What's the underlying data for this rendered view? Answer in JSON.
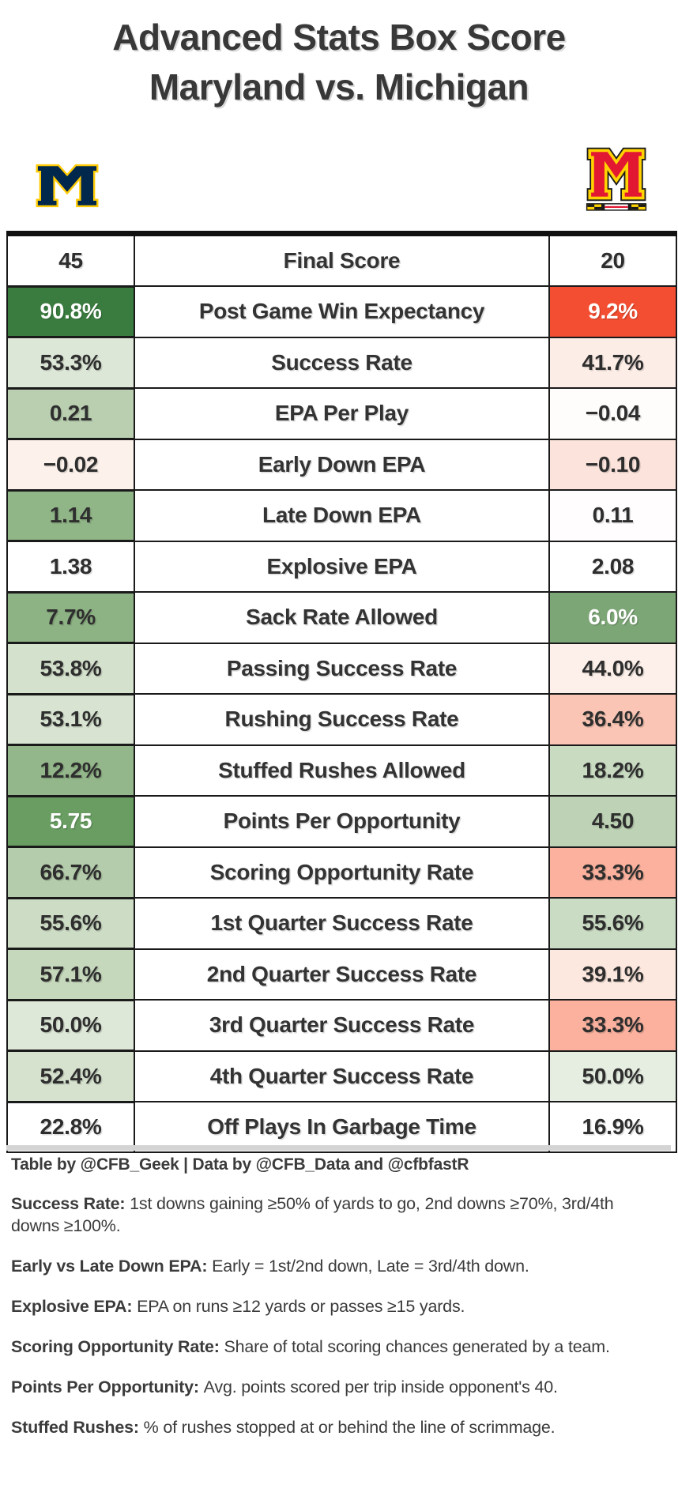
{
  "title": {
    "line1": "Advanced Stats Box Score",
    "line2": "Maryland vs. Michigan"
  },
  "teams": {
    "left": {
      "name": "Michigan",
      "logo": "michigan-block-m",
      "fill": "#00274c",
      "outline": "#ffcb05"
    },
    "right": {
      "name": "Maryland",
      "logo": "maryland-m",
      "fill": "#e21833",
      "outline": "#ffd200",
      "outline2": "#1a1a1a"
    }
  },
  "chart_data": {
    "type": "table",
    "title": "Advanced Stats Box Score — Maryland vs. Michigan",
    "categories": [
      "Final Score",
      "Post Game Win Expectancy",
      "Success Rate",
      "EPA Per Play",
      "Early Down EPA",
      "Late Down EPA",
      "Explosive EPA",
      "Sack Rate Allowed",
      "Passing Success Rate",
      "Rushing Success Rate",
      "Stuffed Rushes Allowed",
      "Points Per Opportunity",
      "Scoring Opportunity Rate",
      "1st Quarter Success Rate",
      "2nd Quarter Success Rate",
      "3rd Quarter Success Rate",
      "4th Quarter Success Rate",
      "Off Plays In Garbage Time"
    ],
    "series": [
      {
        "name": "Michigan",
        "values": [
          "45",
          "90.8%",
          "53.3%",
          "0.21",
          "−0.02",
          "1.14",
          "1.38",
          "7.7%",
          "53.8%",
          "53.1%",
          "12.2%",
          "5.75",
          "66.7%",
          "55.6%",
          "57.1%",
          "50.0%",
          "52.4%",
          "22.8%"
        ]
      },
      {
        "name": "Maryland",
        "values": [
          "20",
          "9.2%",
          "41.7%",
          "−0.04",
          "−0.10",
          "0.11",
          "2.08",
          "6.0%",
          "44.0%",
          "36.4%",
          "18.2%",
          "4.50",
          "33.3%",
          "55.6%",
          "39.1%",
          "33.3%",
          "50.0%",
          "16.9%"
        ]
      }
    ],
    "color_scale": {
      "best": "#3a7c3f",
      "good": "#8db384",
      "neutral": "#ffffff",
      "bad": "#fac5b4",
      "worst": "#f44e32"
    }
  },
  "table": {
    "rows": [
      {
        "label": "Final Score",
        "left": {
          "value": "45",
          "bg": "#ffffff",
          "color": "#2e2e2e"
        },
        "right": {
          "value": "20",
          "bg": "#ffffff",
          "color": "#2e2e2e"
        }
      },
      {
        "label": "Post Game Win Expectancy",
        "left": {
          "value": "90.8%",
          "bg": "#3a7c3f",
          "color": "#ffffff"
        },
        "right": {
          "value": "9.2%",
          "bg": "#f44e32",
          "color": "#ffffff"
        }
      },
      {
        "label": "Success Rate",
        "left": {
          "value": "53.3%",
          "bg": "#dde7d7",
          "color": "#2e2e2e"
        },
        "right": {
          "value": "41.7%",
          "bg": "#fdede7",
          "color": "#2e2e2e"
        }
      },
      {
        "label": "EPA Per Play",
        "left": {
          "value": "0.21",
          "bg": "#b9cfb0",
          "color": "#2e2e2e"
        },
        "right": {
          "value": "−0.04",
          "bg": "#fffdfc",
          "color": "#2e2e2e"
        }
      },
      {
        "label": "Early Down EPA",
        "left": {
          "value": "−0.02",
          "bg": "#fdf1eb",
          "color": "#2e2e2e"
        },
        "right": {
          "value": "−0.10",
          "bg": "#fce4dc",
          "color": "#2e2e2e"
        }
      },
      {
        "label": "Late Down EPA",
        "left": {
          "value": "1.14",
          "bg": "#90b587",
          "color": "#2e2e2e"
        },
        "right": {
          "value": "0.11",
          "bg": "#fffdfd",
          "color": "#2e2e2e"
        }
      },
      {
        "label": "Explosive EPA",
        "left": {
          "value": "1.38",
          "bg": "#ffffff",
          "color": "#2e2e2e"
        },
        "right": {
          "value": "2.08",
          "bg": "#ffffff",
          "color": "#2e2e2e"
        }
      },
      {
        "label": "Sack Rate Allowed",
        "left": {
          "value": "7.7%",
          "bg": "#8db384",
          "color": "#2e2e2e"
        },
        "right": {
          "value": "6.0%",
          "bg": "#7da677",
          "color": "#ffffff"
        }
      },
      {
        "label": "Passing Success Rate",
        "left": {
          "value": "53.8%",
          "bg": "#d4e1cc",
          "color": "#2e2e2e"
        },
        "right": {
          "value": "44.0%",
          "bg": "#fdf0ea",
          "color": "#2e2e2e"
        }
      },
      {
        "label": "Rushing Success Rate",
        "left": {
          "value": "53.1%",
          "bg": "#d8e4d1",
          "color": "#2e2e2e"
        },
        "right": {
          "value": "36.4%",
          "bg": "#fac5b4",
          "color": "#2e2e2e"
        }
      },
      {
        "label": "Stuffed Rushes Allowed",
        "left": {
          "value": "12.2%",
          "bg": "#93b78a",
          "color": "#2e2e2e"
        },
        "right": {
          "value": "18.2%",
          "bg": "#c9dcc2",
          "color": "#2e2e2e"
        }
      },
      {
        "label": "Points Per Opportunity",
        "left": {
          "value": "5.75",
          "bg": "#699d62",
          "color": "#ffffff"
        },
        "right": {
          "value": "4.50",
          "bg": "#bed3b5",
          "color": "#2e2e2e"
        }
      },
      {
        "label": "Scoring Opportunity Rate",
        "left": {
          "value": "66.7%",
          "bg": "#b4ccab",
          "color": "#2e2e2e"
        },
        "right": {
          "value": "33.3%",
          "bg": "#fbb19d",
          "color": "#2e2e2e"
        }
      },
      {
        "label": "1st Quarter Success Rate",
        "left": {
          "value": "55.6%",
          "bg": "#cddcc5",
          "color": "#2e2e2e"
        },
        "right": {
          "value": "55.6%",
          "bg": "#cbdcc4",
          "color": "#2e2e2e"
        }
      },
      {
        "label": "2nd Quarter Success Rate",
        "left": {
          "value": "57.1%",
          "bg": "#c5d8bc",
          "color": "#2e2e2e"
        },
        "right": {
          "value": "39.1%",
          "bg": "#fde8df",
          "color": "#2e2e2e"
        }
      },
      {
        "label": "3rd Quarter Success Rate",
        "left": {
          "value": "50.0%",
          "bg": "#dee8d8",
          "color": "#2e2e2e"
        },
        "right": {
          "value": "33.3%",
          "bg": "#fbb19e",
          "color": "#2e2e2e"
        }
      },
      {
        "label": "4th Quarter Success Rate",
        "left": {
          "value": "52.4%",
          "bg": "#d6e2ce",
          "color": "#2e2e2e"
        },
        "right": {
          "value": "50.0%",
          "bg": "#e5eee1",
          "color": "#2e2e2e"
        }
      },
      {
        "label": "Off Plays In Garbage Time",
        "left": {
          "value": "22.8%",
          "bg": "#ffffff",
          "color": "#2e2e2e"
        },
        "right": {
          "value": "16.9%",
          "bg": "#ffffff",
          "color": "#2e2e2e"
        }
      }
    ]
  },
  "footer": {
    "attribution": "Table by @CFB_Geek | Data by @CFB_Data and @cfbfastR",
    "notes": [
      {
        "term": "Success Rate",
        "desc": "1st downs gaining ≥50% of yards to go, 2nd downs ≥70%, 3rd/4th downs ≥100%."
      },
      {
        "term": "Early vs Late Down EPA",
        "desc": "Early = 1st/2nd down, Late = 3rd/4th down."
      },
      {
        "term": "Explosive EPA",
        "desc": "EPA on runs ≥12 yards or passes ≥15 yards."
      },
      {
        "term": "Scoring Opportunity Rate",
        "desc": "Share of total scoring chances generated by a team."
      },
      {
        "term": "Points Per Opportunity",
        "desc": "Avg. points scored per trip inside opponent's 40."
      },
      {
        "term": "Stuffed Rushes",
        "desc": "% of rushes stopped at or behind the line of scrimmage."
      }
    ]
  }
}
